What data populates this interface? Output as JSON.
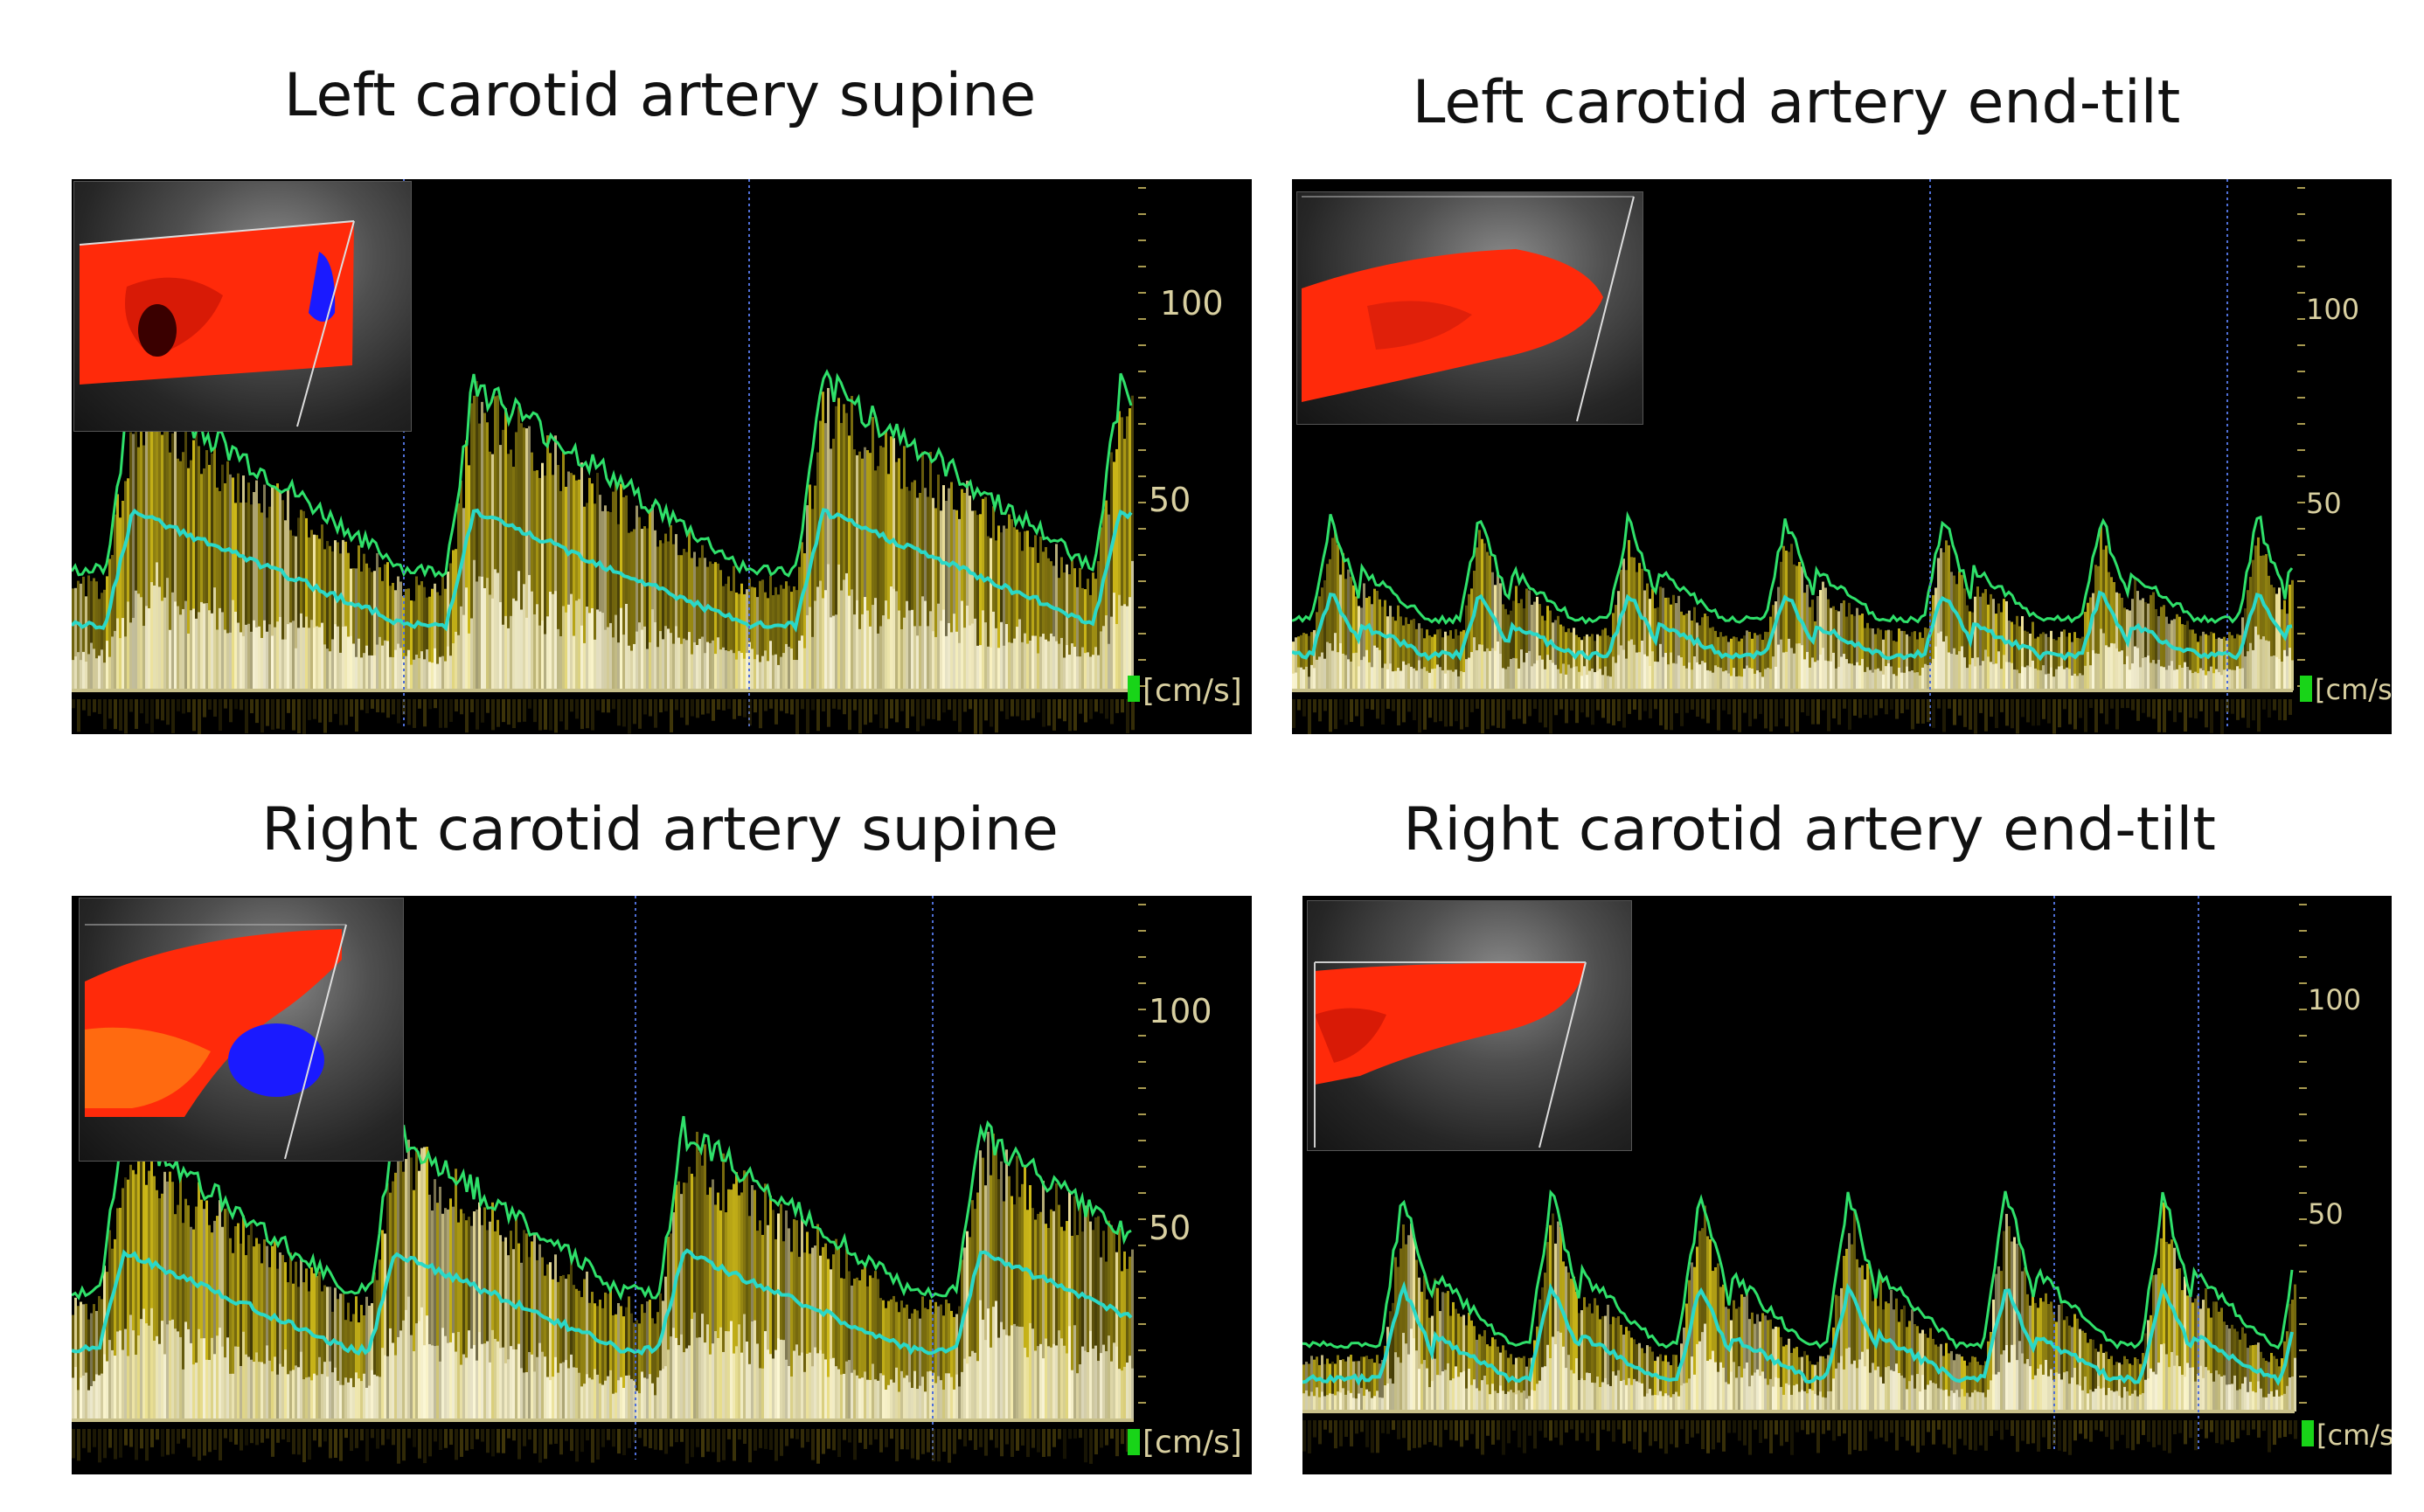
{
  "panels": [
    {
      "id": "left-supine",
      "title": "Left carotid artery supine",
      "scale_ticks": [
        "100",
        "50"
      ],
      "unit": "[cm/s]"
    },
    {
      "id": "left-endtilt",
      "title": "Left carotid artery end-tilt",
      "scale_ticks": [
        "100",
        "50"
      ],
      "unit": "[cm/s]"
    },
    {
      "id": "right-supine",
      "title": "Right carotid artery supine",
      "scale_ticks": [
        "100",
        "50"
      ],
      "unit": "[cm/s]"
    },
    {
      "id": "right-endtilt",
      "title": "Right carotid artery end-tilt",
      "scale_ticks": [
        "100",
        "50"
      ],
      "unit": "[cm/s]"
    }
  ],
  "colors": {
    "doppler_fill": "#d8c21a",
    "envelope_peak": "#2fe06a",
    "envelope_mean": "#2ad8c8",
    "baseline": "#c8c08a",
    "flow_red": "#ff2a0a",
    "flow_blue": "#1a1aff"
  }
}
